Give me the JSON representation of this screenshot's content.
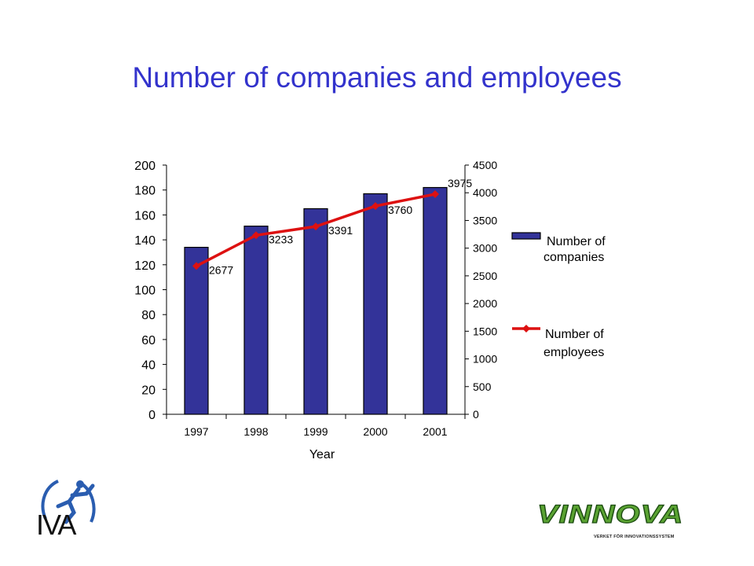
{
  "title": "Number of companies and employees",
  "chart_data": {
    "type": "bar",
    "categories": [
      "1997",
      "1998",
      "1999",
      "2000",
      "2001"
    ],
    "series": [
      {
        "name": "Number of companies",
        "type": "bar",
        "axis": "left",
        "values": [
          134,
          151,
          165,
          177,
          182
        ],
        "color": "#333399"
      },
      {
        "name": "Number of employees",
        "type": "line",
        "axis": "right",
        "values": [
          2677,
          3233,
          3391,
          3760,
          3975
        ],
        "color": "#dd1111",
        "labels": [
          "2677",
          "3233",
          "3391",
          "3760",
          "3975"
        ]
      }
    ],
    "xlabel": "Year",
    "ylim_left": [
      0,
      200
    ],
    "yticks_left": [
      "0",
      "20",
      "40",
      "60",
      "80",
      "100",
      "120",
      "140",
      "160",
      "180",
      "200"
    ],
    "ylim_right": [
      0,
      4500
    ],
    "yticks_right": [
      "0",
      "500",
      "1000",
      "1500",
      "2000",
      "2500",
      "3000",
      "3500",
      "4000",
      "4500"
    ],
    "legend_position": "right",
    "grid": false
  },
  "legend": {
    "companies_line1": "Number of",
    "companies_line2": "companies",
    "employees_line1": "Number of",
    "employees_line2": "employees"
  },
  "logos": {
    "iva_text": "IVA",
    "vinnova_text": "VINNOVA",
    "vinnova_tagline": "VERKET FÖR INNOVATIONSSYSTEM"
  }
}
